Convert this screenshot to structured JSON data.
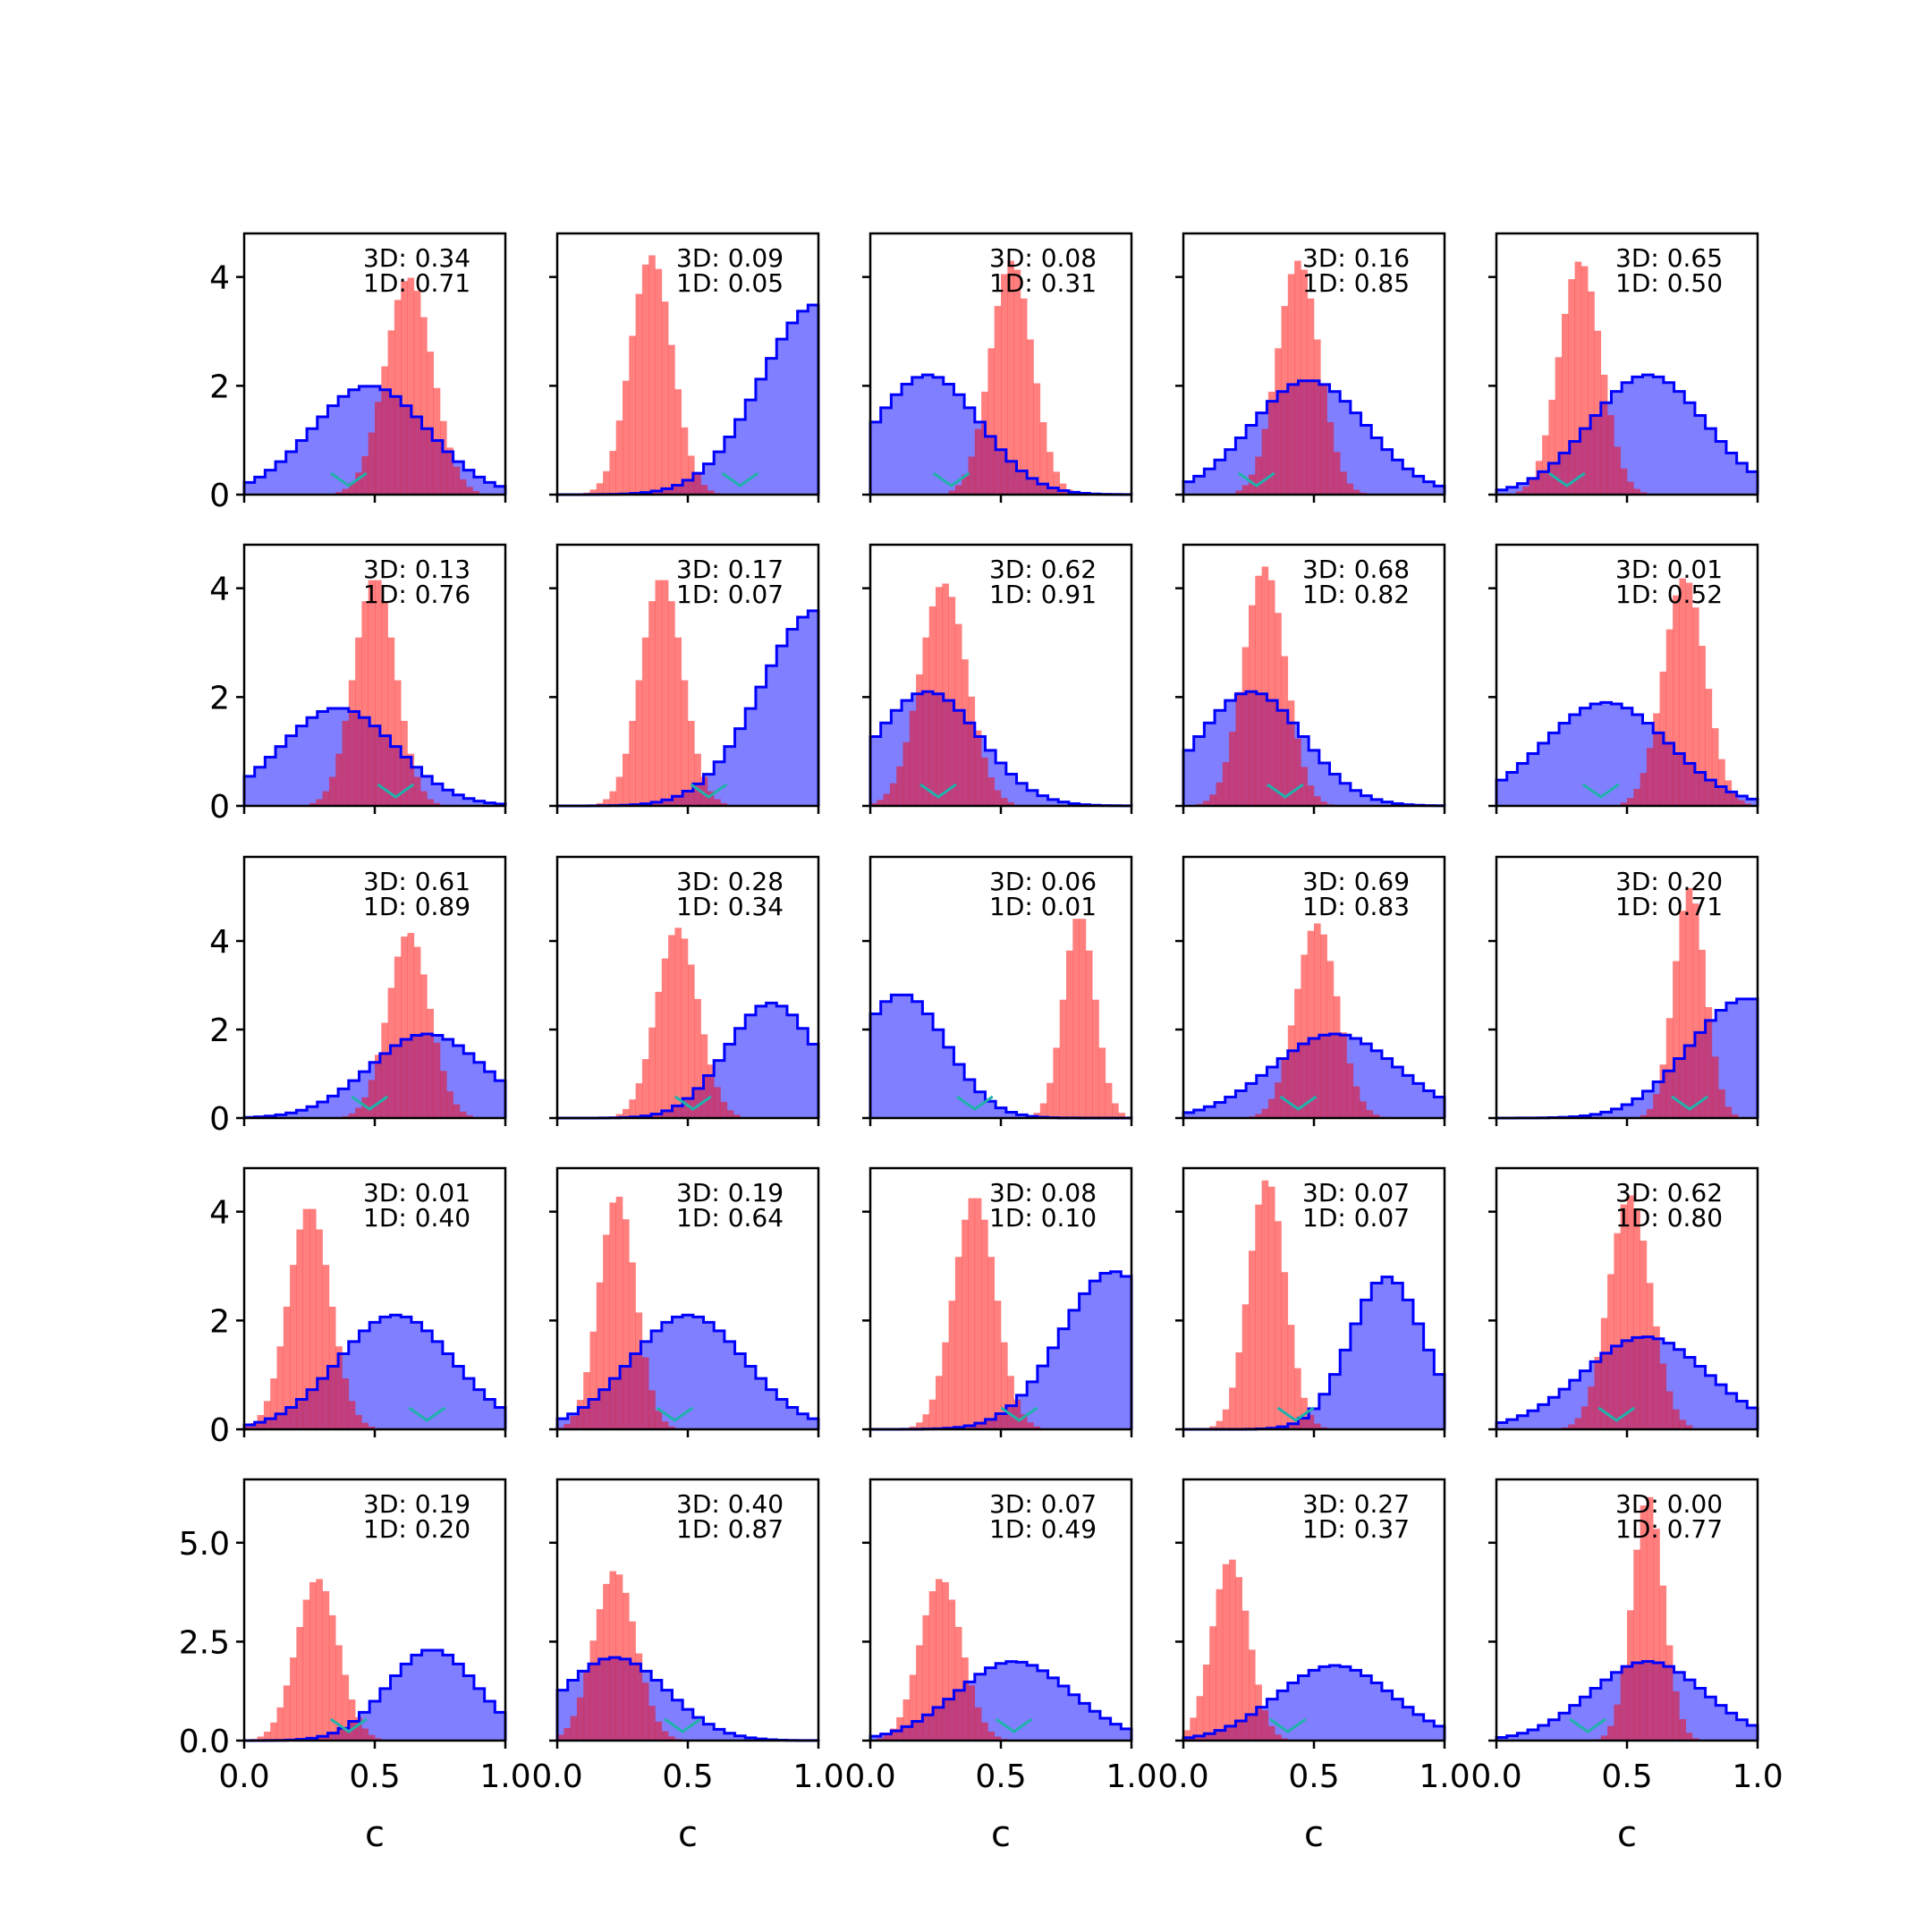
{
  "chart_data": {
    "type": "histogram-grid",
    "rows": 5,
    "cols": 5,
    "xlim": [
      0,
      1
    ],
    "x_ticks": [
      "0.0",
      "0.5",
      "1.0"
    ],
    "xlabel": "c",
    "colors": {
      "red": "#ff0000",
      "blue": "#0000ff",
      "marker": "#20b2aa"
    },
    "row_axes": [
      {
        "ylim": [
          0,
          4.8
        ],
        "ticks": [
          0,
          2,
          4
        ],
        "tick_labels": [
          "0",
          "2",
          "4"
        ]
      },
      {
        "ylim": [
          0,
          4.8
        ],
        "ticks": [
          0,
          2,
          4
        ],
        "tick_labels": [
          "0",
          "2",
          "4"
        ]
      },
      {
        "ylim": [
          0,
          5.9
        ],
        "ticks": [
          0,
          2,
          4
        ],
        "tick_labels": [
          "0",
          "2",
          "4"
        ]
      },
      {
        "ylim": [
          0,
          4.8
        ],
        "ticks": [
          0,
          2,
          4
        ],
        "tick_labels": [
          "0",
          "2",
          "4"
        ]
      },
      {
        "ylim": [
          0,
          6.6
        ],
        "ticks": [
          0,
          2.5,
          5
        ],
        "tick_labels": [
          "0.0",
          "2.5",
          "5.0"
        ]
      }
    ],
    "panels": [
      {
        "row": 0,
        "col": 0,
        "label_3d": "3D: 0.34",
        "label_1d": "1D: 0.71",
        "red_mean": 0.63,
        "red_sd": 0.09,
        "red_peak": 4.0,
        "blue_mode": 0.48,
        "blue_sd": 0.22,
        "blue_peak": 2.0,
        "marker": 0.4
      },
      {
        "row": 0,
        "col": 1,
        "label_3d": "3D: 0.09",
        "label_1d": "1D: 0.05",
        "red_mean": 0.36,
        "red_sd": 0.08,
        "red_peak": 4.4,
        "blue_mode": 1.0,
        "blue_sd": 0.22,
        "blue_peak": 3.5,
        "marker": 0.7
      },
      {
        "row": 0,
        "col": 2,
        "label_3d": "3D: 0.08",
        "label_1d": "1D: 0.31",
        "red_mean": 0.54,
        "red_sd": 0.08,
        "red_peak": 4.3,
        "blue_mode": 0.22,
        "blue_sd": 0.2,
        "blue_peak": 2.2,
        "marker": 0.31
      },
      {
        "row": 0,
        "col": 3,
        "label_3d": "3D: 0.16",
        "label_1d": "1D: 0.85",
        "red_mean": 0.44,
        "red_sd": 0.08,
        "red_peak": 4.3,
        "blue_mode": 0.48,
        "blue_sd": 0.22,
        "blue_peak": 2.1,
        "marker": 0.28
      },
      {
        "row": 0,
        "col": 4,
        "label_3d": "3D: 0.65",
        "label_1d": "1D: 0.50",
        "red_mean": 0.32,
        "red_sd": 0.08,
        "red_peak": 4.3,
        "blue_mode": 0.58,
        "blue_sd": 0.22,
        "blue_peak": 2.2,
        "marker": 0.27
      },
      {
        "row": 1,
        "col": 0,
        "label_3d": "3D: 0.13",
        "label_1d": "1D: 0.76",
        "red_mean": 0.5,
        "red_sd": 0.08,
        "red_peak": 4.2,
        "blue_mode": 0.36,
        "blue_sd": 0.22,
        "blue_peak": 1.8,
        "marker": 0.58
      },
      {
        "row": 1,
        "col": 1,
        "label_3d": "3D: 0.17",
        "label_1d": "1D: 0.07",
        "red_mean": 0.4,
        "red_sd": 0.08,
        "red_peak": 4.2,
        "blue_mode": 1.0,
        "blue_sd": 0.22,
        "blue_peak": 3.6,
        "marker": 0.58
      },
      {
        "row": 1,
        "col": 2,
        "label_3d": "3D: 0.62",
        "label_1d": "1D: 0.91",
        "red_mean": 0.28,
        "red_sd": 0.09,
        "red_peak": 4.1,
        "blue_mode": 0.22,
        "blue_sd": 0.2,
        "blue_peak": 2.1,
        "marker": 0.26
      },
      {
        "row": 1,
        "col": 3,
        "label_3d": "3D: 0.68",
        "label_1d": "1D: 0.82",
        "red_mean": 0.31,
        "red_sd": 0.08,
        "red_peak": 4.4,
        "blue_mode": 0.26,
        "blue_sd": 0.2,
        "blue_peak": 2.1,
        "marker": 0.39
      },
      {
        "row": 1,
        "col": 4,
        "label_3d": "3D: 0.01",
        "label_1d": "1D: 0.52",
        "red_mean": 0.72,
        "red_sd": 0.08,
        "red_peak": 4.2,
        "blue_mode": 0.42,
        "blue_sd": 0.24,
        "blue_peak": 1.9,
        "marker": 0.4
      },
      {
        "row": 2,
        "col": 0,
        "label_3d": "3D: 0.61",
        "label_1d": "1D: 0.89",
        "red_mean": 0.63,
        "red_sd": 0.08,
        "red_peak": 4.2,
        "blue_mode": 0.7,
        "blue_sd": 0.22,
        "blue_peak": 1.9,
        "marker": 0.48
      },
      {
        "row": 2,
        "col": 1,
        "label_3d": "3D: 0.28",
        "label_1d": "1D: 0.34",
        "red_mean": 0.46,
        "red_sd": 0.08,
        "red_peak": 4.3,
        "blue_mode": 0.82,
        "blue_sd": 0.17,
        "blue_peak": 2.6,
        "marker": 0.52
      },
      {
        "row": 2,
        "col": 2,
        "label_3d": "3D: 0.06",
        "label_1d": "1D: 0.01",
        "red_mean": 0.8,
        "red_sd": 0.06,
        "red_peak": 4.6,
        "blue_mode": 0.12,
        "blue_sd": 0.17,
        "blue_peak": 2.8,
        "marker": 0.4
      },
      {
        "row": 2,
        "col": 3,
        "label_3d": "3D: 0.69",
        "label_1d": "1D: 0.83",
        "red_mean": 0.51,
        "red_sd": 0.08,
        "red_peak": 4.4,
        "blue_mode": 0.58,
        "blue_sd": 0.24,
        "blue_peak": 1.9,
        "marker": 0.44
      },
      {
        "row": 2,
        "col": 4,
        "label_3d": "3D: 0.20",
        "label_1d": "1D: 0.71",
        "red_mean": 0.74,
        "red_sd": 0.06,
        "red_peak": 5.2,
        "blue_mode": 0.96,
        "blue_sd": 0.22,
        "blue_peak": 2.7,
        "marker": 0.74
      },
      {
        "row": 3,
        "col": 0,
        "label_3d": "3D: 0.01",
        "label_1d": "1D: 0.40",
        "red_mean": 0.25,
        "red_sd": 0.08,
        "red_peak": 4.1,
        "blue_mode": 0.58,
        "blue_sd": 0.22,
        "blue_peak": 2.1,
        "marker": 0.7
      },
      {
        "row": 3,
        "col": 1,
        "label_3d": "3D: 0.19",
        "label_1d": "1D: 0.64",
        "red_mean": 0.23,
        "red_sd": 0.07,
        "red_peak": 4.3,
        "blue_mode": 0.5,
        "blue_sd": 0.22,
        "blue_peak": 2.1,
        "marker": 0.45
      },
      {
        "row": 3,
        "col": 2,
        "label_3d": "3D: 0.08",
        "label_1d": "1D: 0.10",
        "red_mean": 0.4,
        "red_sd": 0.08,
        "red_peak": 4.3,
        "blue_mode": 0.93,
        "blue_sd": 0.2,
        "blue_peak": 2.9,
        "marker": 0.57
      },
      {
        "row": 3,
        "col": 3,
        "label_3d": "3D: 0.07",
        "label_1d": "1D: 0.07",
        "red_mean": 0.32,
        "red_sd": 0.07,
        "red_peak": 4.6,
        "blue_mode": 0.78,
        "blue_sd": 0.14,
        "blue_peak": 2.8,
        "marker": 0.43
      },
      {
        "row": 3,
        "col": 4,
        "label_3d": "3D: 0.62",
        "label_1d": "1D: 0.80",
        "red_mean": 0.51,
        "red_sd": 0.08,
        "red_peak": 4.3,
        "blue_mode": 0.57,
        "blue_sd": 0.24,
        "blue_peak": 1.7,
        "marker": 0.46
      },
      {
        "row": 4,
        "col": 0,
        "label_3d": "3D: 0.19",
        "label_1d": "1D: 0.20",
        "red_mean": 0.28,
        "red_sd": 0.08,
        "red_peak": 4.1,
        "blue_mode": 0.72,
        "blue_sd": 0.17,
        "blue_peak": 2.3,
        "marker": 0.4
      },
      {
        "row": 4,
        "col": 1,
        "label_3d": "3D: 0.40",
        "label_1d": "1D: 0.87",
        "red_mean": 0.22,
        "red_sd": 0.08,
        "red_peak": 4.3,
        "blue_mode": 0.22,
        "blue_sd": 0.2,
        "blue_peak": 2.1,
        "marker": 0.48
      },
      {
        "row": 4,
        "col": 2,
        "label_3d": "3D: 0.07",
        "label_1d": "1D: 0.49",
        "red_mean": 0.27,
        "red_sd": 0.08,
        "red_peak": 4.1,
        "blue_mode": 0.55,
        "blue_sd": 0.22,
        "blue_peak": 2.0,
        "marker": 0.55
      },
      {
        "row": 4,
        "col": 3,
        "label_3d": "3D: 0.27",
        "label_1d": "1D: 0.37",
        "red_mean": 0.18,
        "red_sd": 0.07,
        "red_peak": 4.6,
        "blue_mode": 0.58,
        "blue_sd": 0.22,
        "blue_peak": 1.9,
        "marker": 0.4
      },
      {
        "row": 4,
        "col": 4,
        "label_3d": "3D: 0.00",
        "label_1d": "1D: 0.77",
        "red_mean": 0.58,
        "red_sd": 0.06,
        "red_peak": 6.2,
        "blue_mode": 0.58,
        "blue_sd": 0.22,
        "blue_peak": 2.0,
        "marker": 0.35
      }
    ]
  }
}
